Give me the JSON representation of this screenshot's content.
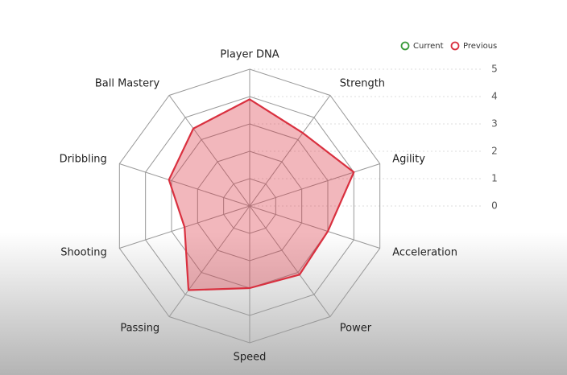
{
  "chart_data": {
    "type": "radar",
    "categories": [
      "Player DNA",
      "Strength",
      "Agility",
      "Acceleration",
      "Power",
      "Speed",
      "Passing",
      "Shooting",
      "Dribbling",
      "Ball Mastery"
    ],
    "series": [
      {
        "name": "Current",
        "color": "#3a9a3a",
        "values": [
          null,
          null,
          null,
          null,
          null,
          null,
          null,
          null,
          null,
          null
        ]
      },
      {
        "name": "Previous",
        "color": "#d9303f",
        "values": [
          3.9,
          3.3,
          4,
          3,
          3.1,
          3,
          3.8,
          2.5,
          3.1,
          3.5
        ]
      }
    ],
    "ylim": [
      0,
      5
    ],
    "yticks": [
      0,
      1,
      2,
      3,
      4,
      5
    ],
    "grid": true,
    "legend": "top-right"
  }
}
